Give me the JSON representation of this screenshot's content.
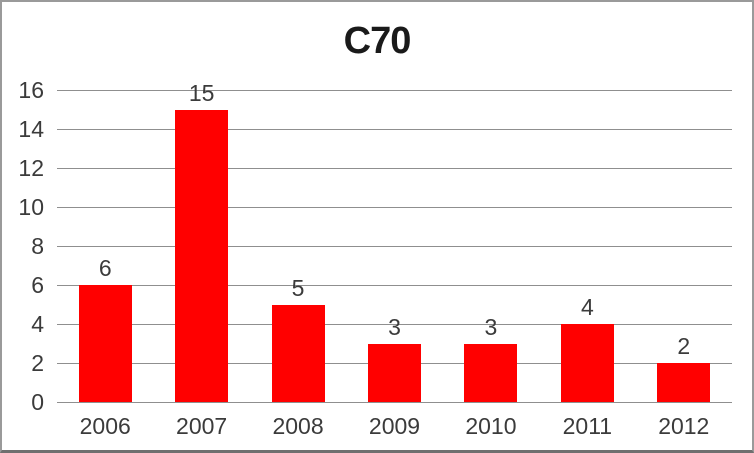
{
  "window": {
    "background": "#ffffff",
    "border_color": "#9a9a9a",
    "border_bottom_color": "#6f6f6f"
  },
  "chart_data": {
    "type": "bar",
    "title": "C70",
    "categories": [
      "2006",
      "2007",
      "2008",
      "2009",
      "2010",
      "2011",
      "2012"
    ],
    "values": [
      6,
      15,
      5,
      3,
      3,
      4,
      2
    ],
    "xlabel": "",
    "ylabel": "",
    "ylim": [
      0,
      16
    ],
    "y_ticks": [
      0,
      2,
      4,
      6,
      8,
      10,
      12,
      14,
      16
    ],
    "grid": true,
    "legend_position": "none",
    "show_data_labels": true,
    "bar_color": "#ff0000",
    "gridline_color": "#8f8f8f",
    "axis_text_color": "#3b3b3b",
    "title_color": "#1a1a1a"
  }
}
